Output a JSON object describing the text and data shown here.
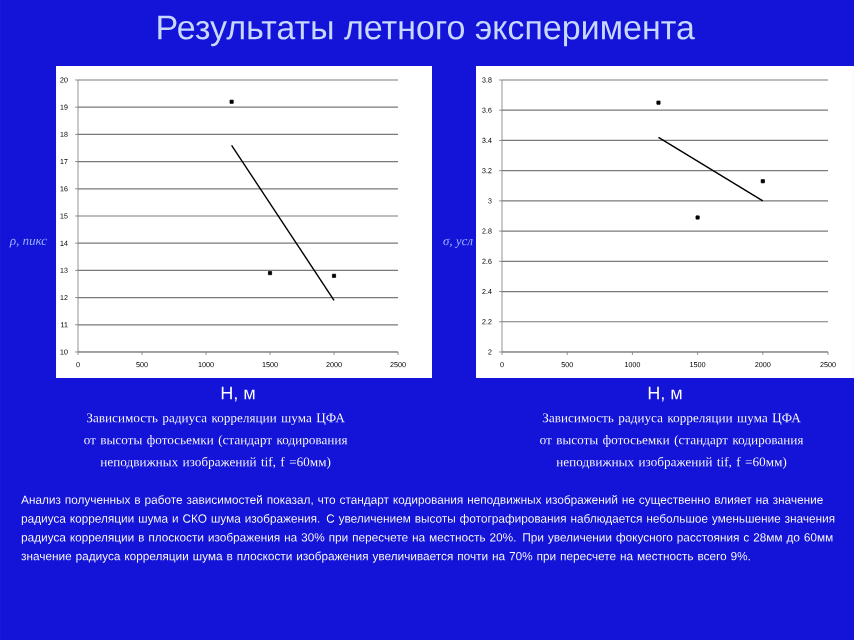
{
  "chart_data": [
    {
      "type": "scatter",
      "title": "Результаты летного эксперимента",
      "xlabel": "Н, м",
      "ylabel": "*ρ, пикс*",
      "xlim": [
        0,
        2500
      ],
      "xticks": [
        0,
        500,
        1000,
        1500,
        2000,
        2500
      ],
      "ylim": [
        10,
        20
      ],
      "yticks": [
        10,
        11,
        12,
        13,
        14,
        15,
        16,
        17,
        18,
        19,
        20
      ],
      "grid": "y",
      "series": [
        {
          "color": "#000000",
          "marker": "square",
          "x": [
            1200,
            1500,
            2000
          ],
          "values": [
            19.2,
            12.9,
            12.8
          ]
        },
        {
          "type": "line",
          "color": "#000000",
          "line_style": "solid",
          "x": [
            1200,
            2000
          ],
          "values": [
            17.6,
            11.9
          ]
        }
      ],
      "annotations": [
        "Зависимость радиуса корреляции шума ЦФА от высоты фотосьемки (стандарт кодирования неподвижных изображений tif, f =60мм)",
        "Анализ полученных в работе зависимостей показал, что стандарт кодирования неподвижных изображений не существенно влияет на значение радиуса корреляции шума и СКО шума изображения. С увеличением высоты фотографирования наблюдается небольшое уменьшение значения радиуса корреляции в плоскости изображения на 30% при пересчете на местность 20%. При увеличении фокусного расстояния с 28мм до 60мм значение радиуса корреляции шума в плоскости изображения увеличивается почти на 70% при пересчете на местность всего 9%."
      ]
    },
    {
      "type": "scatter",
      "xlabel": "Н, м",
      "ylabel": "*σ, усл*",
      "xlim": [
        0,
        2500
      ],
      "xticks": [
        0,
        500,
        1000,
        1500,
        2000,
        2500
      ],
      "ylim": [
        2,
        3.8
      ],
      "yticks": [
        2,
        2.2,
        2.4,
        2.6,
        2.8,
        3,
        3.2,
        3.4,
        3.6,
        3.8
      ],
      "grid": "y",
      "series": [
        {
          "color": "#000000",
          "marker": "square",
          "x": [
            1200,
            1500,
            2000
          ],
          "values": [
            3.65,
            2.89,
            3.13
          ]
        },
        {
          "type": "line",
          "color": "#000000",
          "line_style": "solid",
          "x": [
            1200,
            2000
          ],
          "values": [
            3.42,
            3.0
          ]
        }
      ],
      "annotations": [
        "Зависимость радиуса корреляции шума ЦФА от высоты фотосьемки (стандарт кодирования неподвижных изображений tif, f =60мм)"
      ]
    }
  ]
}
